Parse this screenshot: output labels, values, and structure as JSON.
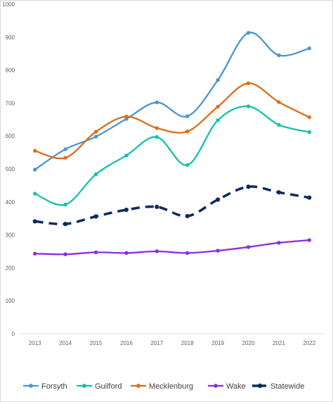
{
  "chart_data": {
    "type": "line",
    "title": "",
    "xlabel": "",
    "ylabel": "",
    "categories": [
      "2013",
      "2014",
      "2015",
      "2016",
      "2017",
      "2018",
      "2019",
      "2020",
      "2021",
      "2022"
    ],
    "ylim": [
      0,
      1000
    ],
    "yticks": [
      0,
      100,
      200,
      300,
      400,
      500,
      600,
      700,
      800,
      900,
      1000
    ],
    "grid": false,
    "legend": "bottom",
    "series": [
      {
        "name": "Forsyth",
        "color": "#4a96d0",
        "style": "solid",
        "values": [
          498,
          560,
          598,
          652,
          702,
          660,
          770,
          913,
          845,
          866
        ]
      },
      {
        "name": "Guilford",
        "color": "#11c3a8",
        "style": "solid",
        "values": [
          425,
          392,
          484,
          541,
          597,
          512,
          648,
          690,
          634,
          612
        ]
      },
      {
        "name": "Mecklenburg",
        "color": "#dc6d1b",
        "style": "solid",
        "values": [
          555,
          534,
          613,
          659,
          624,
          614,
          689,
          760,
          703,
          657
        ]
      },
      {
        "name": "Wake",
        "color": "#8d2ce3",
        "style": "solid",
        "values": [
          243,
          241,
          247,
          245,
          250,
          245,
          252,
          263,
          276,
          284
        ]
      },
      {
        "name": "Statewide",
        "color": "#0c2b5e",
        "style": "dashed",
        "values": [
          341,
          333,
          356,
          376,
          385,
          357,
          407,
          446,
          429,
          413
        ]
      }
    ]
  }
}
